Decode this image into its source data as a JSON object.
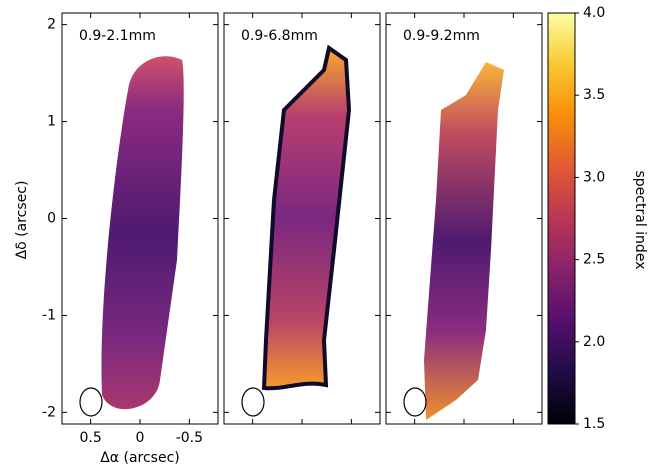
{
  "chart_data": {
    "type": "image",
    "panels": [
      {
        "label": "0.9-2.1mm"
      },
      {
        "label": "0.9-6.8mm"
      },
      {
        "label": "0.9-9.2mm"
      }
    ],
    "xlabel": "Δα (arcsec)",
    "ylabel": "Δδ (arcsec)",
    "xlim": [
      0.79,
      -0.79
    ],
    "xticks": [
      0.5,
      0,
      -0.5
    ],
    "ylim": [
      -2.12,
      2.12
    ],
    "yticks": [
      -2,
      -1,
      0,
      1,
      2
    ],
    "colormap": "inferno",
    "colorbar": {
      "label": "spectral index",
      "lim": [
        1.5,
        4.0
      ],
      "ticks": [
        1.5,
        {
          "value": 2.0,
          "label": "2.0"
        },
        2.5,
        {
          "value": 3.0,
          "label": "3.0"
        },
        3.5,
        {
          "value": 4.0,
          "label": "4.0"
        }
      ]
    }
  }
}
